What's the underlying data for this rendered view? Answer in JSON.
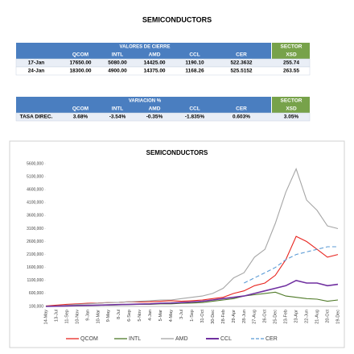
{
  "header": {
    "title": "SEMICONDUCTORS"
  },
  "tables": [
    {
      "title": "VALORES DE CIERRE",
      "sector": "SECTOR",
      "columns": [
        "QCOM",
        "INTL",
        "AMD",
        "CCL",
        "CER",
        "XSD"
      ],
      "rows": [
        [
          "17-Jan",
          "17650.00",
          "5080.00",
          "14425.00",
          "1190.10",
          "522.3632",
          "255.74"
        ],
        [
          "24-Jan",
          "18300.00",
          "4900.00",
          "14375.00",
          "1168.26",
          "525.5152",
          "263.55"
        ]
      ]
    },
    {
      "title": "VARIACION %",
      "sector": "SECTOR",
      "columns": [
        "QCOM",
        "INTL",
        "AMD",
        "CCL",
        "CER",
        "XSD"
      ],
      "rows": [
        [
          "TASA DIREC.",
          "3.68%",
          "-3.54%",
          "-0.35%",
          "-1.835%",
          "0.603%",
          "3.05%"
        ]
      ]
    }
  ],
  "chart_data": {
    "type": "line",
    "title": "SEMICONDUCTORS",
    "categories": [
      "14-May",
      "13-Jul",
      "11-Sep",
      "10-Nov",
      "9-Jan",
      "10-Mar",
      "9-May",
      "8-Jul",
      "6-Sep",
      "5-Nov",
      "4-Jan",
      "5-Mar",
      "4-May",
      "3-Jul",
      "1-Sep",
      "31-Oct",
      "30-Dec",
      "28-Feb",
      "29-Apr",
      "28-Jun",
      "27-Aug",
      "26-Oct",
      "25-Dec",
      "23-Feb",
      "23-Apr",
      "22-Jun",
      "21-Aug",
      "20-Oct",
      "19-Dec"
    ],
    "series": [
      {
        "name": "QCOM",
        "color": "#e8251f",
        "values": [
          120000,
          150000,
          180000,
          200000,
          220000,
          230000,
          250000,
          260000,
          280000,
          270000,
          280000,
          300000,
          320000,
          300000,
          320000,
          350000,
          400000,
          450000,
          600000,
          700000,
          900000,
          1000000,
          1300000,
          1900000,
          2800000,
          2600000,
          2300000,
          2000000,
          2100000
        ]
      },
      {
        "name": "INTL",
        "color": "#4f7a28",
        "values": [
          110000,
          120000,
          130000,
          140000,
          140000,
          150000,
          150000,
          160000,
          170000,
          180000,
          180000,
          200000,
          200000,
          220000,
          230000,
          250000,
          300000,
          350000,
          400000,
          500000,
          550000,
          600000,
          650000,
          500000,
          450000,
          400000,
          380000,
          300000,
          350000
        ]
      },
      {
        "name": "AMD",
        "color": "#a6a6a6",
        "values": [
          100000,
          120000,
          150000,
          180000,
          200000,
          220000,
          250000,
          260000,
          280000,
          300000,
          320000,
          350000,
          350000,
          400000,
          450000,
          500000,
          600000,
          800000,
          1200000,
          1400000,
          2000000,
          2300000,
          3300000,
          4500000,
          5400000,
          4200000,
          3800000,
          3200000,
          3100000
        ]
      },
      {
        "name": "CCL",
        "color": "#7030a0",
        "values": [
          100000,
          110000,
          120000,
          130000,
          140000,
          150000,
          160000,
          170000,
          180000,
          190000,
          200000,
          220000,
          230000,
          250000,
          270000,
          300000,
          350000,
          400000,
          450000,
          500000,
          600000,
          700000,
          800000,
          900000,
          1100000,
          1000000,
          1000000,
          900000,
          950000
        ]
      },
      {
        "name": "CER",
        "color": "#5b9bd5",
        "dashed": true,
        "values": [
          null,
          null,
          null,
          null,
          null,
          null,
          null,
          null,
          null,
          null,
          null,
          null,
          null,
          null,
          null,
          null,
          null,
          null,
          null,
          1000000,
          1200000,
          1400000,
          1600000,
          1900000,
          2100000,
          2200000,
          2300000,
          2400000,
          2400000
        ]
      }
    ],
    "ylim": [
      100000,
      5600000
    ],
    "yticks": [
      {
        "value": 100000,
        "label": "100,000"
      },
      {
        "value": 600000,
        "label": "600,000"
      },
      {
        "value": 1100000,
        "label": "1100,000"
      },
      {
        "value": 1600000,
        "label": "1600,000"
      },
      {
        "value": 2100000,
        "label": "2100,000"
      },
      {
        "value": 2600000,
        "label": "2600,000"
      },
      {
        "value": 3100000,
        "label": "3100,000"
      },
      {
        "value": 3600000,
        "label": "3600,000"
      },
      {
        "value": 4100000,
        "label": "4100,000"
      },
      {
        "value": 4600000,
        "label": "4600,000"
      },
      {
        "value": 5100000,
        "label": "5100,000"
      },
      {
        "value": 5600000,
        "label": "5600,000"
      }
    ],
    "grid": false
  }
}
